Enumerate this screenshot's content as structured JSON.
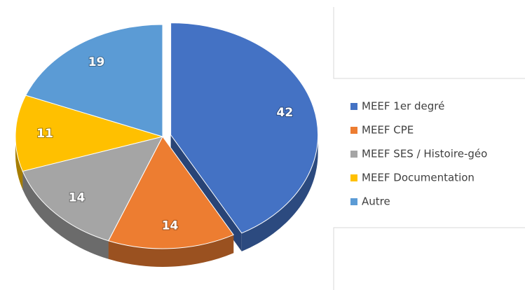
{
  "chart_data": {
    "type": "pie",
    "categories": [
      "MEEF 1er degré",
      "MEEF CPE",
      "MEEF SES / Histoire-géo",
      "MEEF Documentation",
      "Autre"
    ],
    "values": [
      42,
      14,
      14,
      11,
      19
    ],
    "colors": [
      "#4472c4",
      "#ed7d31",
      "#a5a5a5",
      "#ffc000",
      "#5b9bd5"
    ],
    "legend": "right"
  }
}
